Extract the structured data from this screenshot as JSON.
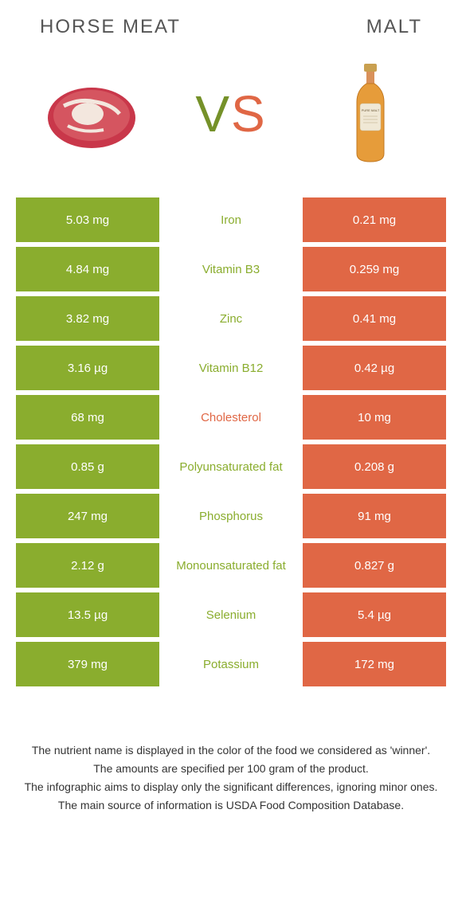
{
  "header": {
    "left_title": "Horse meat",
    "right_title": "Malt",
    "vs_v": "V",
    "vs_s": "S"
  },
  "colors": {
    "green": "#8aad2e",
    "orange": "#e06745"
  },
  "rows": [
    {
      "left": "5.03 mg",
      "label": "Iron",
      "right": "0.21 mg",
      "winner": "green"
    },
    {
      "left": "4.84 mg",
      "label": "Vitamin B3",
      "right": "0.259 mg",
      "winner": "green"
    },
    {
      "left": "3.82 mg",
      "label": "Zinc",
      "right": "0.41 mg",
      "winner": "green"
    },
    {
      "left": "3.16 µg",
      "label": "Vitamin B12",
      "right": "0.42 µg",
      "winner": "green"
    },
    {
      "left": "68 mg",
      "label": "Cholesterol",
      "right": "10 mg",
      "winner": "orange"
    },
    {
      "left": "0.85 g",
      "label": "Polyunsaturated fat",
      "right": "0.208 g",
      "winner": "green"
    },
    {
      "left": "247 mg",
      "label": "Phosphorus",
      "right": "91 mg",
      "winner": "green"
    },
    {
      "left": "2.12 g",
      "label": "Monounsaturated fat",
      "right": "0.827 g",
      "winner": "green"
    },
    {
      "left": "13.5 µg",
      "label": "Selenium",
      "right": "5.4 µg",
      "winner": "green"
    },
    {
      "left": "379 mg",
      "label": "Potassium",
      "right": "172 mg",
      "winner": "green"
    }
  ],
  "footer": {
    "line1": "The nutrient name is displayed in the color of the food we considered as 'winner'.",
    "line2": "The amounts are specified per 100 gram of the product.",
    "line3": "The infographic aims to display only the significant differences, ignoring minor ones.",
    "line4": "The main source of information is USDA Food Composition Database."
  }
}
